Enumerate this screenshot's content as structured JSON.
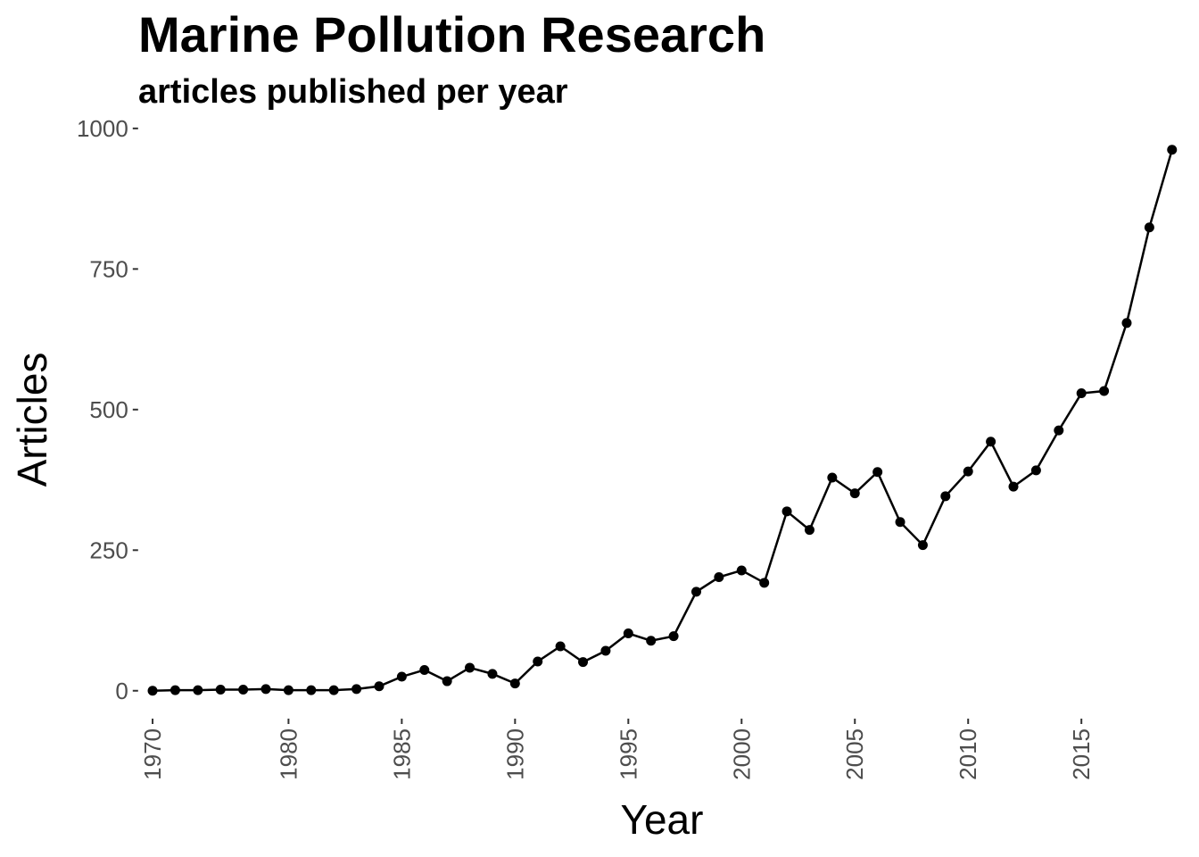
{
  "chart_data": {
    "type": "line",
    "title": "Marine Pollution Research",
    "subtitle": "articles published per year",
    "x_label": "Year",
    "y_label": "Articles",
    "categories": [
      "1970",
      null,
      null,
      null,
      null,
      null,
      "1980",
      null,
      null,
      null,
      null,
      "1985",
      null,
      null,
      null,
      null,
      "1990",
      null,
      null,
      null,
      null,
      "1995",
      null,
      null,
      null,
      null,
      "2000",
      null,
      null,
      null,
      null,
      "2005",
      null,
      null,
      null,
      null,
      "2010",
      null,
      null,
      null,
      null,
      "2015",
      null,
      null,
      null,
      null
    ],
    "values": [
      0,
      1,
      1,
      2,
      2,
      3,
      1,
      1,
      1,
      3,
      8,
      25,
      37,
      17,
      41,
      30,
      13,
      52,
      79,
      51,
      71,
      102,
      89,
      97,
      176,
      202,
      214,
      192,
      319,
      286,
      379,
      351,
      389,
      300,
      259,
      346,
      390,
      443,
      363,
      392,
      463,
      529,
      533,
      654,
      824,
      962
    ],
    "color": "#000000",
    "ylim": [
      -48,
      1022
    ],
    "yticks": [
      0,
      250,
      500,
      750,
      1000
    ],
    "grid": false
  }
}
